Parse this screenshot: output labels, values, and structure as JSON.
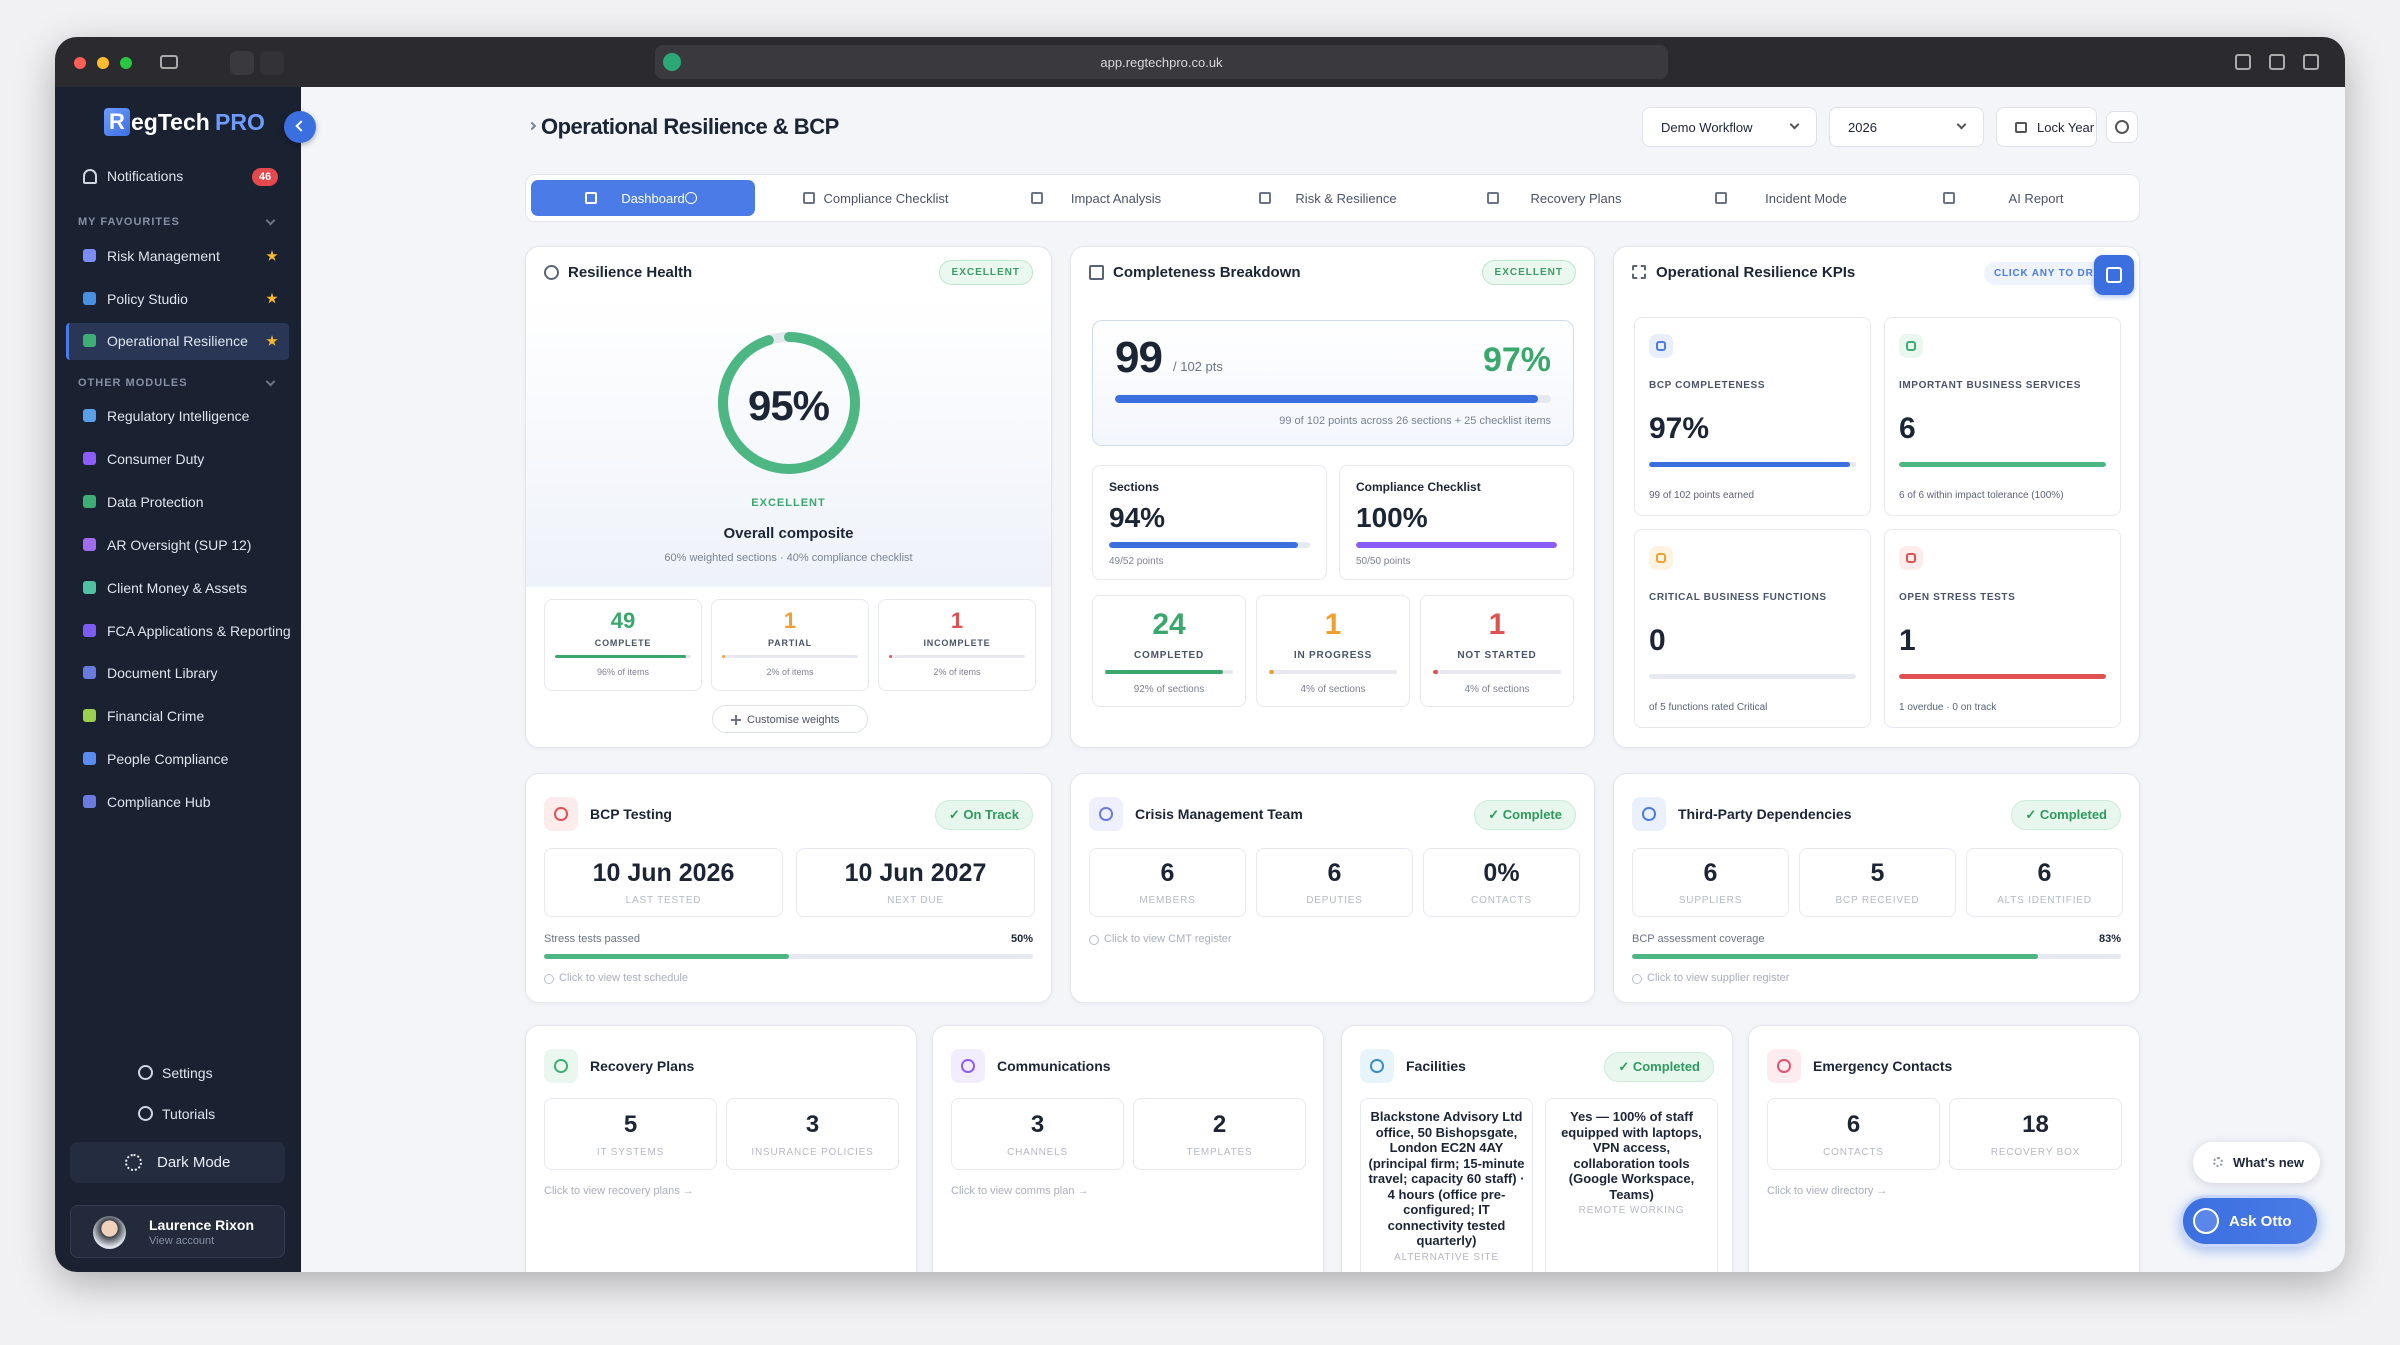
{
  "browser": {
    "url": "app.regtechpro.co.uk"
  },
  "sidebar": {
    "logo": {
      "mark": "R",
      "name": "egTech",
      "accent": "PRO"
    },
    "notifications": {
      "label": "Notifications",
      "count": 46
    },
    "favourites": {
      "heading": "MY FAVOURITES",
      "items": [
        "Risk Management",
        "Policy Studio",
        "Operational Resilience"
      ]
    },
    "other_modules": {
      "heading": "OTHER MODULES",
      "items": [
        "Regulatory Intelligence",
        "Consumer Duty",
        "Data Protection",
        "AR Oversight (SUP 12)",
        "Client Money & Assets",
        "FCA Applications & Reporting",
        "Document Library",
        "Financial Crime",
        "People Compliance",
        "Compliance Hub"
      ]
    },
    "settings": "Settings",
    "tutorials": "Tutorials",
    "dark_mode": "Dark Mode",
    "user": {
      "name": "Laurence Rixon",
      "sub": "View account"
    }
  },
  "header": {
    "title": "Operational Resilience & BCP",
    "workflow": "Demo Workflow",
    "year": "2026",
    "lock": "Lock Year"
  },
  "tabs": [
    "Dashboard",
    "Compliance Checklist",
    "Impact Analysis",
    "Risk & Resilience",
    "Recovery Plans",
    "Incident Mode",
    "AI Report"
  ],
  "resilience_health": {
    "title": "Resilience Health",
    "badge": "EXCELLENT",
    "score": "95%",
    "rating": "EXCELLENT",
    "caption": "Overall composite",
    "note": "60% weighted sections · 40% compliance checklist",
    "stats": [
      {
        "value": 49,
        "label": "COMPLETE",
        "sub": "96% of items"
      },
      {
        "value": 1,
        "label": "PARTIAL",
        "sub": "2% of items"
      },
      {
        "value": 1,
        "label": "INCOMPLETE",
        "sub": "2% of items"
      }
    ],
    "button": "Customise weights"
  },
  "completeness": {
    "title": "Completeness Breakdown",
    "badge": "EXCELLENT",
    "points": 99,
    "total": "/ 102 pts",
    "percent": "97%",
    "note": "99 of 102 points across 26 sections + 25 checklist items",
    "parts": [
      {
        "label": "Sections",
        "value": "94%",
        "sub": "49/52 points"
      },
      {
        "label": "Compliance Checklist",
        "value": "100%",
        "sub": "50/50 points"
      }
    ],
    "status": [
      {
        "value": 24,
        "label": "COMPLETED",
        "sub": "92% of sections"
      },
      {
        "value": 1,
        "label": "IN PROGRESS",
        "sub": "4% of sections"
      },
      {
        "value": 1,
        "label": "NOT STARTED",
        "sub": "4% of sections"
      }
    ]
  },
  "kpis": {
    "title": "Operational Resilience KPIs",
    "hint": "CLICK ANY TO DRILL",
    "items": [
      {
        "label": "BCP COMPLETENESS",
        "value": "97%",
        "sub": "99 of 102 points earned"
      },
      {
        "label": "IMPORTANT BUSINESS SERVICES",
        "value": 6,
        "sub": "6 of 6 within impact tolerance (100%)"
      },
      {
        "label": "CRITICAL BUSINESS FUNCTIONS",
        "value": 0,
        "sub": "of 5 functions rated Critical"
      },
      {
        "label": "OPEN STRESS TESTS",
        "value": 1,
        "sub": "1 overdue · 0 on track"
      }
    ]
  },
  "bcp_testing": {
    "title": "BCP Testing",
    "status": "On Track",
    "stats": [
      {
        "value": "10 Jun 2026",
        "label": "LAST TESTED"
      },
      {
        "value": "10 Jun 2027",
        "label": "NEXT DUE"
      }
    ],
    "metric": "Stress tests passed",
    "metric_value": "50%",
    "link": "Click to view test schedule"
  },
  "crisis_team": {
    "title": "Crisis Management Team",
    "status": "Complete",
    "stats": [
      {
        "value": 6,
        "label": "MEMBERS"
      },
      {
        "value": 6,
        "label": "DEPUTIES"
      },
      {
        "value": "0%",
        "label": "CONTACTS"
      }
    ],
    "link": "Click to view CMT register"
  },
  "third_party": {
    "title": "Third-Party Dependencies",
    "status": "Completed",
    "stats": [
      {
        "value": 6,
        "label": "SUPPLIERS"
      },
      {
        "value": 5,
        "label": "BCP RECEIVED"
      },
      {
        "value": 6,
        "label": "ALTS IDENTIFIED"
      }
    ],
    "metric": "BCP assessment coverage",
    "metric_value": "83%",
    "link": "Click to view supplier register"
  },
  "recovery_plans": {
    "title": "Recovery Plans",
    "stats": [
      {
        "value": 5,
        "label": "IT SYSTEMS"
      },
      {
        "value": 3,
        "label": "INSURANCE POLICIES"
      }
    ],
    "link": "Click to view recovery plans →"
  },
  "communications": {
    "title": "Communications",
    "stats": [
      {
        "value": 3,
        "label": "CHANNELS"
      },
      {
        "value": 2,
        "label": "TEMPLATES"
      }
    ],
    "link": "Click to view comms plan →"
  },
  "facilities": {
    "title": "Facilities",
    "status": "Completed",
    "stats": [
      {
        "value": "Blackstone Advisory Ltd office, 50 Bishopsgate, London EC2N 4AY (principal firm; 15-minute travel; capacity 60 staff) · 4 hours (office pre-configured; IT connectivity tested quarterly)",
        "label": "ALTERNATIVE SITE"
      },
      {
        "value": "Yes — 100% of staff equipped with laptops, VPN access, collaboration tools (Google Workspace, Teams)",
        "label": "REMOTE WORKING"
      }
    ]
  },
  "emergency_contacts": {
    "title": "Emergency Contacts",
    "stats": [
      {
        "value": 6,
        "label": "CONTACTS"
      },
      {
        "value": 18,
        "label": "RECOVERY BOX"
      }
    ],
    "link": "Click to view directory →"
  },
  "floating": {
    "whats_new": "What's new",
    "ask": "Ask Otto"
  }
}
